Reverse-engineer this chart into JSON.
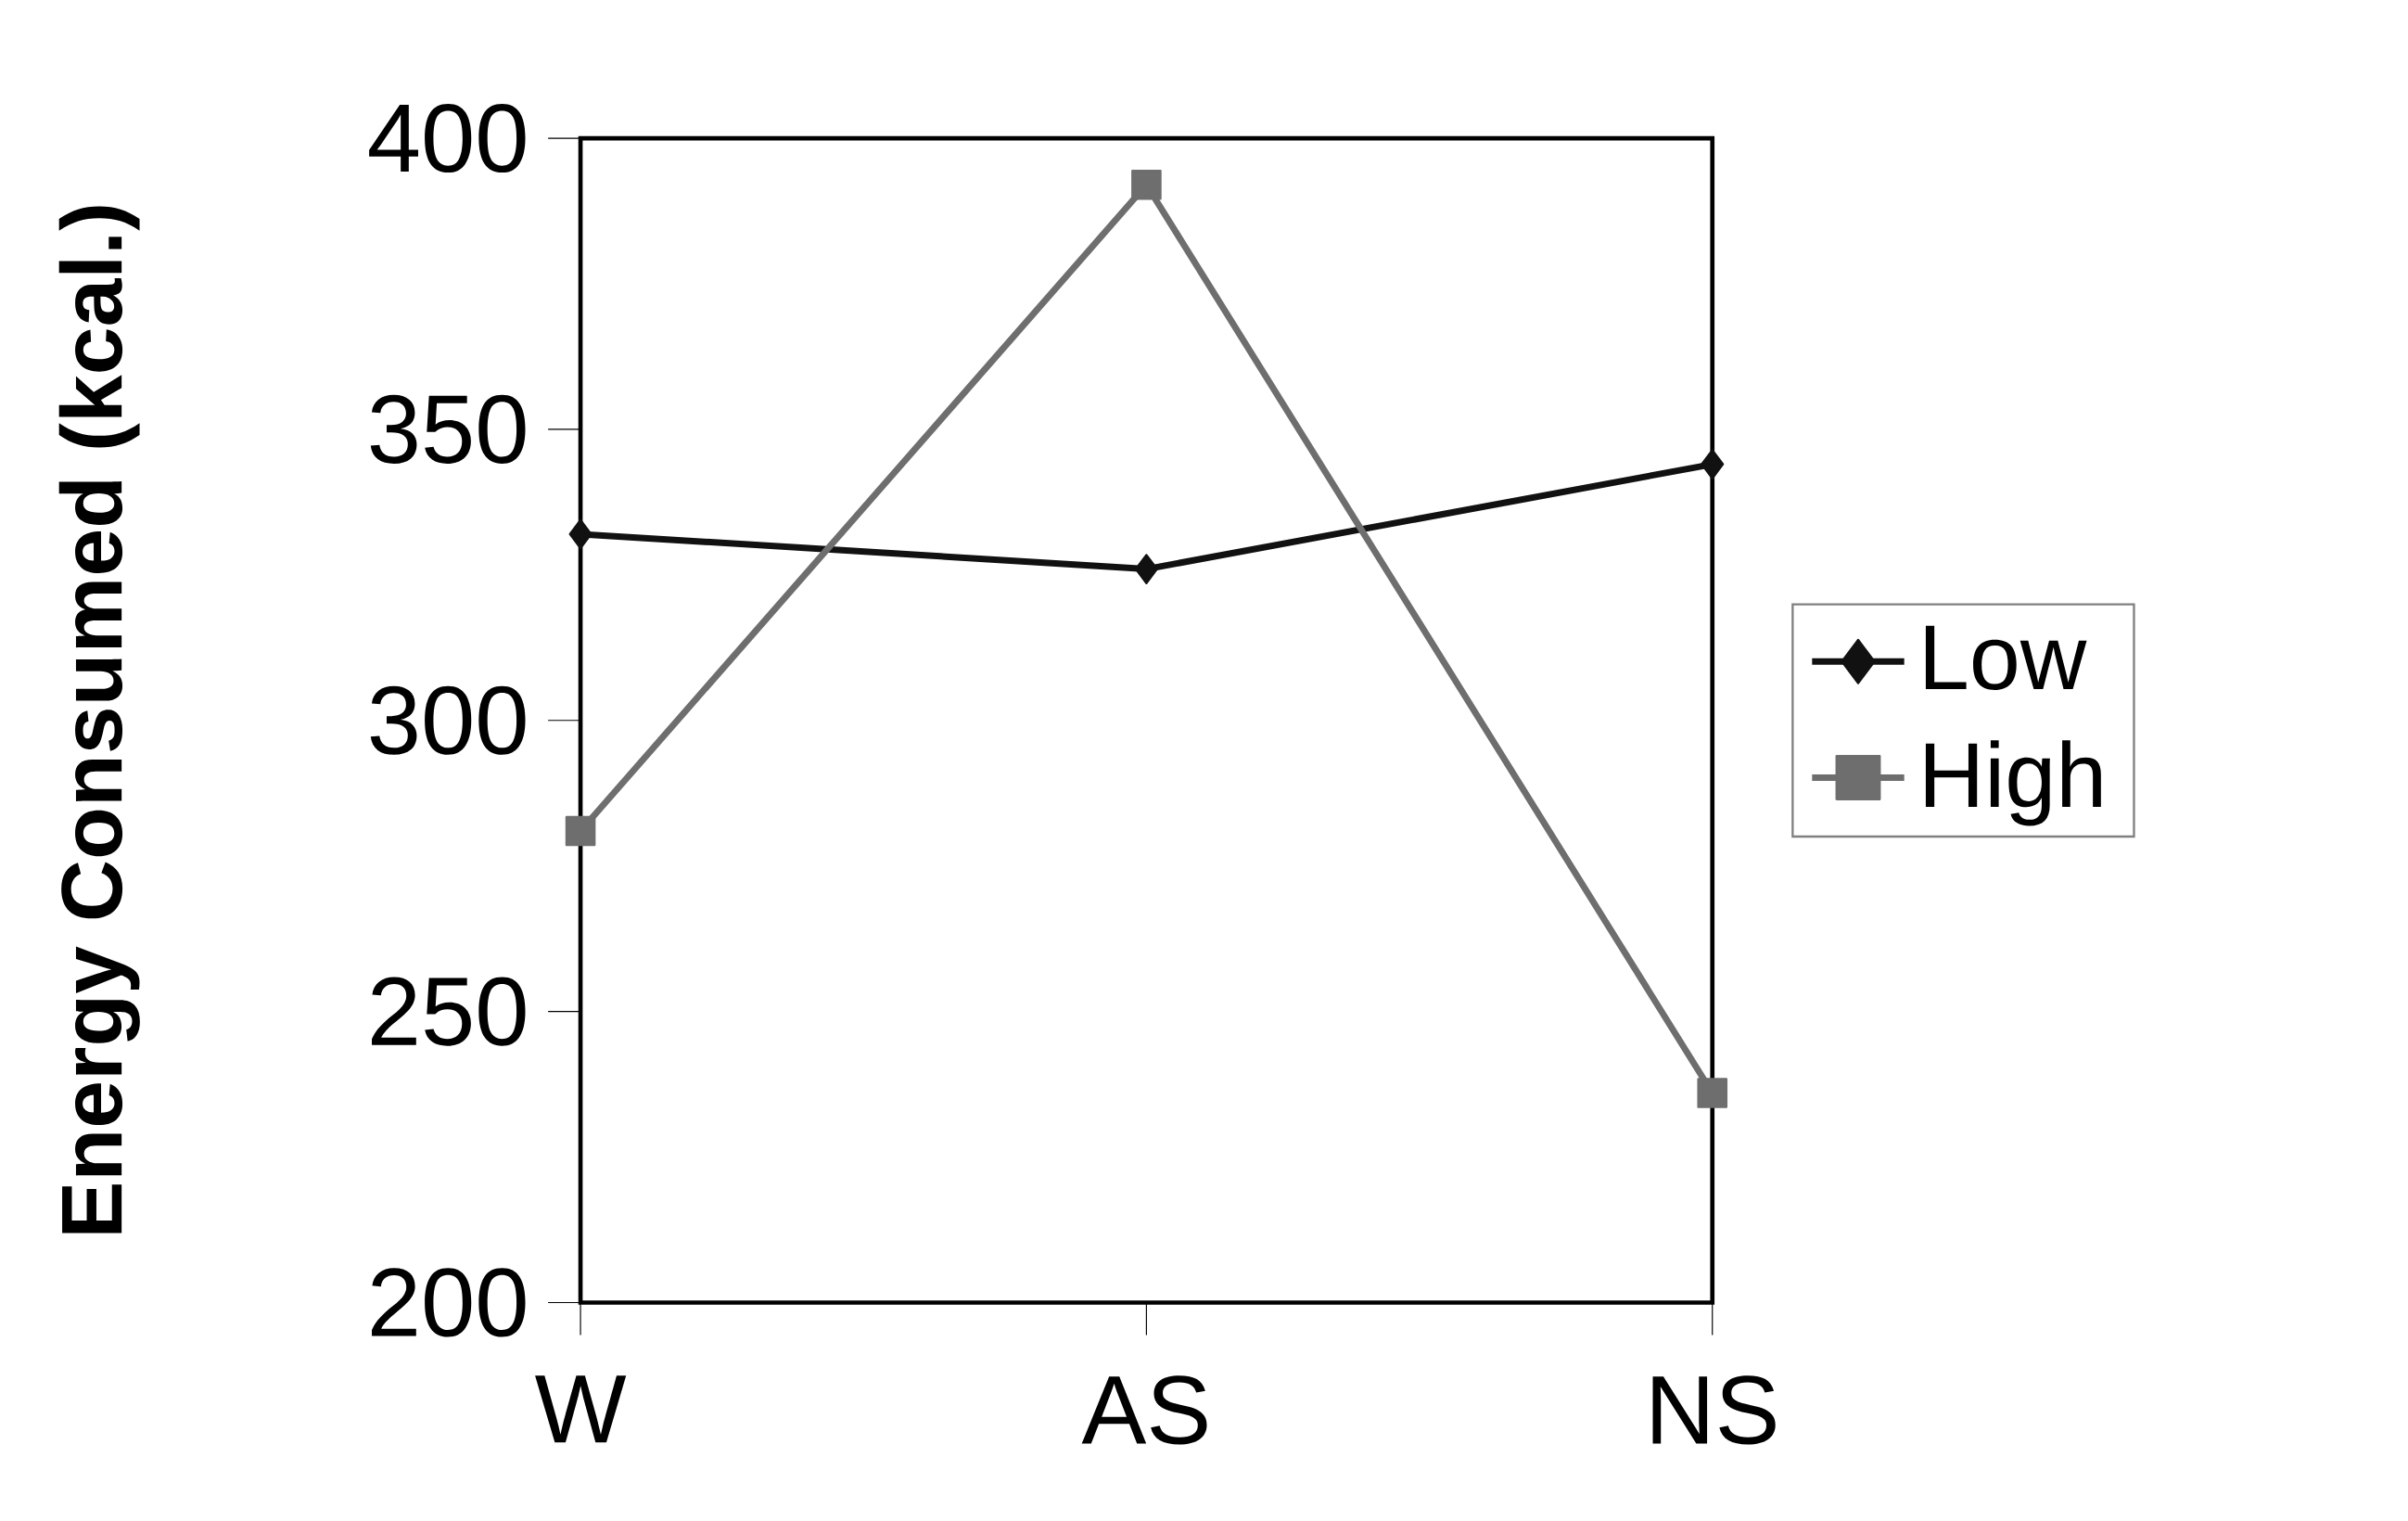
{
  "chart_data": {
    "type": "line",
    "ylabel": "Energy Consumed (kcal.)",
    "categories": [
      "W",
      "AS",
      "NS"
    ],
    "series": [
      {
        "name": "Low",
        "color": "#111111",
        "marker": "diamond",
        "values": [
          332,
          326,
          344
        ]
      },
      {
        "name": "High",
        "color": "#6e6e6e",
        "marker": "square",
        "values": [
          281,
          392,
          236
        ]
      }
    ],
    "ylim": [
      200,
      400
    ],
    "yticks": [
      200,
      250,
      300,
      350,
      400
    ],
    "legend": "right",
    "grid": false,
    "line_style": "solid"
  }
}
